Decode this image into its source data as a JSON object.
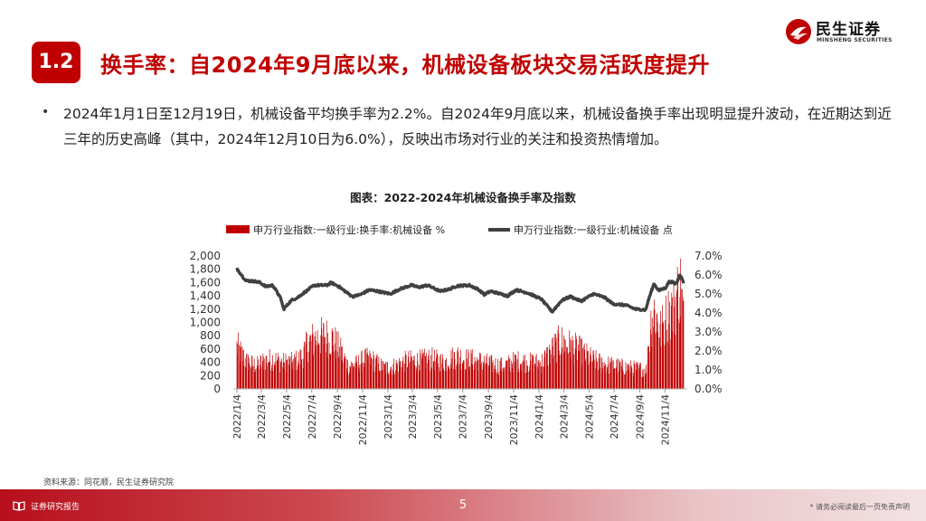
{
  "brand": {
    "name_cn": "民生证券",
    "name_en": "MINSHENG SECURITIES",
    "color": "#c00000"
  },
  "section": {
    "number": "1.2",
    "title": "换手率：自2024年9月底以来，机械设备板块交易活跃度提升"
  },
  "bullet": "2024年1月1日至12月19日，机械设备平均换手率为2.2%。自2024年9月底以来，机械设备换手率出现明显提升波动，在近期达到近三年的历史高峰（其中，2024年12月10日为6.0%），反映出市场对行业的关注和投资热情增加。",
  "source": "资料来源：同花顺，民生证券研究院",
  "footer": {
    "left": "证券研究报告",
    "page": "5",
    "right": "* 请务必阅读最后一页免责声明"
  },
  "chart_data": {
    "type": "bar+line",
    "title": "图表：2022-2024年机械设备换手率及指数",
    "legend_position": "top",
    "left_axis": {
      "ticks": [
        "0",
        "200",
        "400",
        "600",
        "800",
        "1,000",
        "1,200",
        "1,400",
        "1,600",
        "1,800",
        "2,000"
      ],
      "range": [
        0,
        2000
      ]
    },
    "right_axis": {
      "ticks": [
        "0.0%",
        "1.0%",
        "2.0%",
        "3.0%",
        "4.0%",
        "5.0%",
        "6.0%",
        "7.0%"
      ],
      "range": [
        0,
        7
      ]
    },
    "x_ticks": [
      "2022/1/4",
      "2022/3/4",
      "2022/5/4",
      "2022/7/4",
      "2022/9/4",
      "2022/11/4",
      "2023/1/4",
      "2023/3/4",
      "2023/5/4",
      "2023/7/4",
      "2023/9/4",
      "2023/11/4",
      "2024/1/4",
      "2024/3/4",
      "2024/5/4",
      "2024/7/4",
      "2024/9/4",
      "2024/11/4"
    ],
    "series": [
      {
        "name": "申万行业指数:一级行业:换手率:机械设备 %",
        "axis": "right",
        "color": "#c00000",
        "kind": "bar",
        "anchors": [
          [
            "2022/1/4",
            2.4
          ],
          [
            "2022/1/25",
            1.6
          ],
          [
            "2022/2/20",
            1.3
          ],
          [
            "2022/3/10",
            1.6
          ],
          [
            "2022/4/1",
            1.7
          ],
          [
            "2022/4/25",
            1.5
          ],
          [
            "2022/5/20",
            1.5
          ],
          [
            "2022/6/10",
            1.8
          ],
          [
            "2022/6/25",
            2.6
          ],
          [
            "2022/7/15",
            2.9
          ],
          [
            "2022/8/5",
            3.0
          ],
          [
            "2022/8/25",
            2.8
          ],
          [
            "2022/9/10",
            2.2
          ],
          [
            "2022/9/30",
            1.3
          ],
          [
            "2022/10/20",
            1.4
          ],
          [
            "2022/11/10",
            1.7
          ],
          [
            "2022/12/1",
            1.6
          ],
          [
            "2022/12/25",
            1.2
          ],
          [
            "2023/1/20",
            1.3
          ],
          [
            "2023/2/20",
            1.6
          ],
          [
            "2023/3/20",
            1.6
          ],
          [
            "2023/4/20",
            1.7
          ],
          [
            "2023/5/20",
            1.5
          ],
          [
            "2023/6/20",
            1.9
          ],
          [
            "2023/7/10",
            1.7
          ],
          [
            "2023/8/10",
            1.6
          ],
          [
            "2023/9/10",
            1.4
          ],
          [
            "2023/10/10",
            1.3
          ],
          [
            "2023/11/10",
            1.6
          ],
          [
            "2023/12/10",
            1.5
          ],
          [
            "2024/1/10",
            1.5
          ],
          [
            "2024/2/5",
            2.2
          ],
          [
            "2024/2/25",
            2.7
          ],
          [
            "2024/3/15",
            2.5
          ],
          [
            "2024/4/10",
            2.2
          ],
          [
            "2024/5/10",
            1.7
          ],
          [
            "2024/6/10",
            1.4
          ],
          [
            "2024/7/10",
            1.3
          ],
          [
            "2024/8/10",
            1.2
          ],
          [
            "2024/9/20",
            1.1
          ],
          [
            "2024/9/30",
            3.7
          ],
          [
            "2024/10/8",
            4.5
          ],
          [
            "2024/10/25",
            3.3
          ],
          [
            "2024/11/10",
            4.2
          ],
          [
            "2024/11/25",
            4.6
          ],
          [
            "2024/12/10",
            6.0
          ],
          [
            "2024/12/19",
            4.2
          ]
        ]
      },
      {
        "name": "申万行业指数:一级行业:机械设备 点",
        "axis": "left",
        "color": "#404040",
        "kind": "line",
        "anchors": [
          [
            "2022/1/4",
            1810
          ],
          [
            "2022/1/25",
            1630
          ],
          [
            "2022/2/15",
            1620
          ],
          [
            "2022/3/1",
            1600
          ],
          [
            "2022/3/15",
            1540
          ],
          [
            "2022/4/1",
            1560
          ],
          [
            "2022/4/20",
            1360
          ],
          [
            "2022/4/27",
            1200
          ],
          [
            "2022/5/15",
            1330
          ],
          [
            "2022/6/1",
            1380
          ],
          [
            "2022/6/20",
            1470
          ],
          [
            "2022/7/10",
            1560
          ],
          [
            "2022/8/10",
            1560
          ],
          [
            "2022/8/20",
            1600
          ],
          [
            "2022/9/10",
            1530
          ],
          [
            "2022/9/20",
            1480
          ],
          [
            "2022/10/10",
            1390
          ],
          [
            "2022/10/30",
            1420
          ],
          [
            "2022/11/20",
            1490
          ],
          [
            "2022/12/10",
            1470
          ],
          [
            "2023/1/10",
            1430
          ],
          [
            "2023/2/1",
            1500
          ],
          [
            "2023/3/1",
            1560
          ],
          [
            "2023/3/20",
            1530
          ],
          [
            "2023/4/10",
            1560
          ],
          [
            "2023/5/10",
            1470
          ],
          [
            "2023/6/1",
            1500
          ],
          [
            "2023/6/20",
            1550
          ],
          [
            "2023/7/20",
            1560
          ],
          [
            "2023/8/10",
            1500
          ],
          [
            "2023/8/25",
            1420
          ],
          [
            "2023/9/10",
            1470
          ],
          [
            "2023/10/20",
            1400
          ],
          [
            "2023/11/10",
            1490
          ],
          [
            "2023/12/10",
            1440
          ],
          [
            "2024/1/10",
            1350
          ],
          [
            "2024/2/5",
            1160
          ],
          [
            "2024/2/28",
            1330
          ],
          [
            "2024/3/20",
            1390
          ],
          [
            "2024/4/15",
            1320
          ],
          [
            "2024/5/15",
            1430
          ],
          [
            "2024/6/10",
            1380
          ],
          [
            "2024/7/1",
            1280
          ],
          [
            "2024/8/1",
            1260
          ],
          [
            "2024/8/25",
            1200
          ],
          [
            "2024/9/18",
            1190
          ],
          [
            "2024/9/27",
            1380
          ],
          [
            "2024/10/8",
            1580
          ],
          [
            "2024/10/20",
            1480
          ],
          [
            "2024/11/5",
            1520
          ],
          [
            "2024/11/15",
            1620
          ],
          [
            "2024/12/1",
            1580
          ],
          [
            "2024/12/10",
            1720
          ],
          [
            "2024/12/19",
            1600
          ]
        ]
      }
    ]
  }
}
